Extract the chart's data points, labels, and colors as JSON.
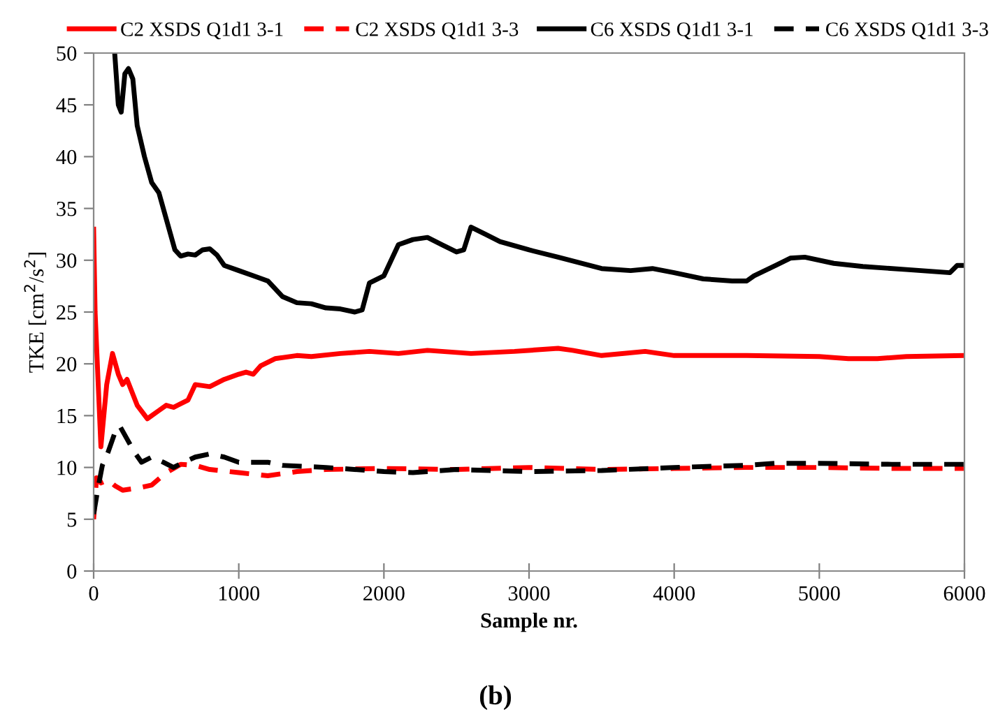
{
  "chart_data": {
    "type": "line",
    "xlabel": "Sample nr.",
    "ylabel": "TKE [cm$^{2}$/s$^{2}$]",
    "annotations": [
      "(b)"
    ],
    "xlim": [
      0,
      6000
    ],
    "xticks": [
      0,
      1000,
      2000,
      3000,
      4000,
      5000,
      6000
    ],
    "ylim": [
      0,
      50
    ],
    "yticks": [
      0,
      5,
      10,
      15,
      20,
      25,
      30,
      35,
      40,
      45,
      50
    ],
    "grid": false,
    "legend": "top",
    "marker": "none",
    "series": [
      {
        "name": "C2 XSDS Q1d1 3-1",
        "color": "#ff0000",
        "line_style": "solid",
        "x": [
          0,
          10,
          50,
          90,
          130,
          170,
          200,
          230,
          300,
          370,
          450,
          500,
          550,
          650,
          700,
          800,
          900,
          1000,
          1050,
          1100,
          1150,
          1250,
          1400,
          1500,
          1700,
          1900,
          2100,
          2300,
          2600,
          2900,
          3200,
          3300,
          3500,
          3800,
          4000,
          4500,
          5000,
          5200,
          5400,
          5600,
          6000
        ],
        "values": [
          33,
          25,
          12,
          18,
          21,
          19,
          18,
          18.5,
          16,
          14.7,
          15.5,
          16,
          15.8,
          16.5,
          18,
          17.8,
          18.5,
          19,
          19.2,
          19,
          19.8,
          20.5,
          20.8,
          20.7,
          21,
          21.2,
          21,
          21.3,
          21,
          21.2,
          21.5,
          21.3,
          20.8,
          21.2,
          20.8,
          20.8,
          20.7,
          20.5,
          20.5,
          20.7,
          20.8
        ]
      },
      {
        "name": "C2 XSDS Q1d1 3-3",
        "color": "#ff0000",
        "line_style": "dashed",
        "x": [
          0,
          20,
          50,
          100,
          150,
          200,
          300,
          400,
          500,
          600,
          700,
          800,
          1000,
          1200,
          1400,
          1600,
          2000,
          2500,
          3000,
          3500,
          4000,
          4500,
          5000,
          5500,
          6000
        ],
        "values": [
          5,
          9,
          8.5,
          8.8,
          8.2,
          7.8,
          8,
          8.3,
          9.5,
          10.3,
          10.2,
          9.8,
          9.5,
          9.2,
          9.6,
          9.8,
          9.9,
          9.8,
          10,
          9.8,
          9.9,
          10,
          10,
          9.9,
          9.9
        ]
      },
      {
        "name": "C6 XSDS Q1d1 3-1",
        "color": "#000000",
        "line_style": "solid",
        "x": [
          145,
          170,
          190,
          215,
          240,
          270,
          300,
          350,
          400,
          450,
          500,
          560,
          600,
          650,
          700,
          750,
          800,
          850,
          900,
          1000,
          1100,
          1200,
          1300,
          1400,
          1500,
          1600,
          1700,
          1800,
          1850,
          1900,
          2000,
          2050,
          2100,
          2200,
          2300,
          2400,
          2500,
          2550,
          2600,
          2700,
          2800,
          3000,
          3200,
          3500,
          3700,
          3850,
          4000,
          4200,
          4400,
          4500,
          4550,
          4700,
          4800,
          4900,
          5100,
          5300,
          5600,
          5900,
          5950,
          6000
        ],
        "values": [
          50,
          45,
          44.3,
          48,
          48.5,
          47.5,
          43,
          40,
          37.5,
          36.5,
          34,
          31,
          30.4,
          30.6,
          30.5,
          31,
          31.1,
          30.5,
          29.5,
          29,
          28.5,
          28,
          26.5,
          25.9,
          25.8,
          25.4,
          25.3,
          25,
          25.2,
          27.8,
          28.5,
          30,
          31.5,
          32,
          32.2,
          31.5,
          30.8,
          31,
          33.2,
          32.5,
          31.8,
          31,
          30.3,
          29.2,
          29,
          29.2,
          28.8,
          28.2,
          28,
          28,
          28.5,
          29.5,
          30.2,
          30.3,
          29.7,
          29.4,
          29.1,
          28.8,
          29.5,
          29.5
        ]
      },
      {
        "name": "C6 XSDS Q1d1 3-3",
        "color": "#000000",
        "line_style": "dashed",
        "x": [
          0,
          30,
          60,
          100,
          150,
          180,
          220,
          280,
          330,
          400,
          480,
          550,
          620,
          700,
          800,
          900,
          1000,
          1200,
          1300,
          1600,
          2000,
          2200,
          2500,
          3000,
          3500,
          4000,
          4500,
          4700,
          5000,
          5500,
          6000
        ],
        "values": [
          5.5,
          8,
          10.2,
          11.5,
          13.5,
          14,
          13,
          11.5,
          10.5,
          11,
          10.5,
          10,
          10.5,
          11,
          11.3,
          11,
          10.5,
          10.5,
          10.2,
          10,
          9.6,
          9.5,
          9.8,
          9.6,
          9.7,
          10,
          10.2,
          10.4,
          10.4,
          10.3,
          10.3
        ]
      }
    ]
  }
}
